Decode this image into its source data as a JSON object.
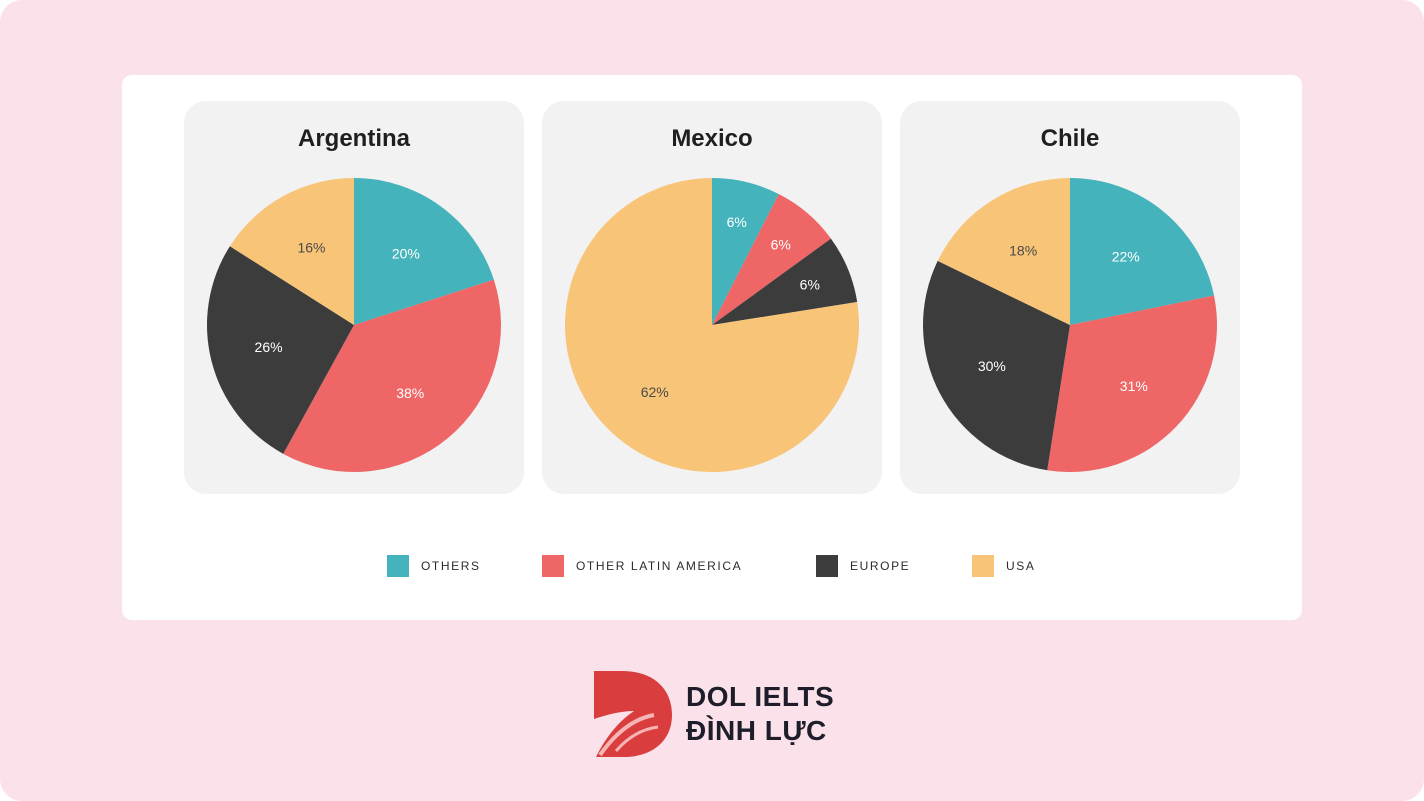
{
  "chart_data": [
    {
      "type": "pie",
      "title": "Argentina",
      "categories": [
        "OTHERS",
        "OTHER LATIN AMERICA",
        "EUROPE",
        "USA"
      ],
      "values": [
        20,
        38,
        26,
        16
      ],
      "labels": [
        "20%",
        "38%",
        "26%",
        "16%"
      ],
      "colors": [
        "#45b3bc",
        "#ee6666",
        "#3c3c3c",
        "#f8c477"
      ]
    },
    {
      "type": "pie",
      "title": "Mexico",
      "categories": [
        "OTHERS",
        "OTHER LATIN AMERICA",
        "EUROPE",
        "USA"
      ],
      "values": [
        6,
        6,
        6,
        62
      ],
      "labels": [
        "6%",
        "6%",
        "6%",
        "62%"
      ],
      "colors": [
        "#45b3bc",
        "#ee6666",
        "#3c3c3c",
        "#f8c477"
      ]
    },
    {
      "type": "pie",
      "title": "Chile",
      "categories": [
        "OTHERS",
        "OTHER LATIN AMERICA",
        "EUROPE",
        "USA"
      ],
      "values": [
        22,
        31,
        30,
        18
      ],
      "labels": [
        "22%",
        "31%",
        "30%",
        "18%"
      ],
      "colors": [
        "#45b3bc",
        "#ee6666",
        "#3c3c3c",
        "#f8c477"
      ]
    }
  ],
  "legend": [
    {
      "label": "OTHERS",
      "color": "#45b3bc"
    },
    {
      "label": "OTHER LATIN AMERICA",
      "color": "#ee6666"
    },
    {
      "label": "EUROPE",
      "color": "#3c3c3c"
    },
    {
      "label": "USA",
      "color": "#f8c477"
    }
  ],
  "brand": {
    "line1": "DOL IELTS",
    "line2": "ĐÌNH LỰC",
    "logo_icon": "dol-logo-icon",
    "accent_color": "#d93d3d"
  }
}
